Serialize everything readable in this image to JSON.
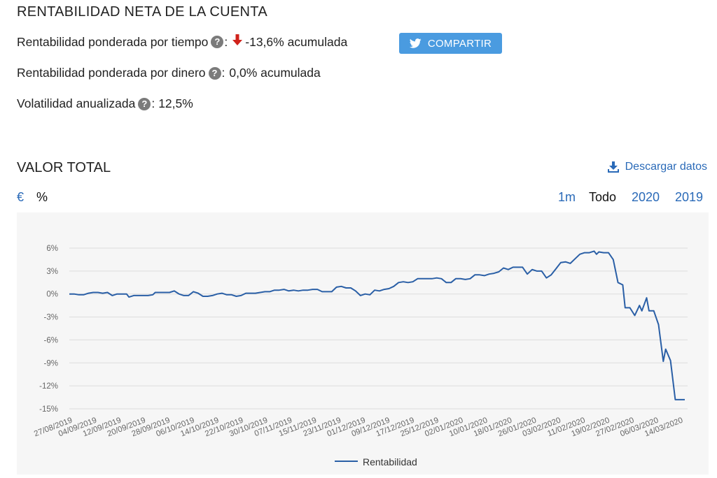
{
  "header": {
    "title": "RENTABILIDAD NETA DE LA CUENTA"
  },
  "metrics": {
    "time_weighted": {
      "label": "Rentabilidad ponderada por tiempo",
      "help": "?",
      "colon": ":",
      "arrow_icon": "arrow-down-icon",
      "value": "-13,6% acumulada"
    },
    "money_weighted": {
      "label": "Rentabilidad ponderada por dinero",
      "help": "?",
      "colon": ":",
      "value": "0,0% acumulada"
    },
    "volatility": {
      "label": "Volatilidad anualizada",
      "help": "?",
      "colon": ":",
      "value": "12,5%"
    }
  },
  "share": {
    "label": "COMPARTIR",
    "icon": "twitter-bird-icon"
  },
  "valor_total": {
    "title": "VALOR TOTAL",
    "download": {
      "label": "Descargar datos",
      "icon": "download-icon"
    },
    "units": [
      {
        "label": "€",
        "selected": false
      },
      {
        "label": "%",
        "selected": true
      }
    ],
    "ranges": [
      {
        "label": "1m",
        "selected": false
      },
      {
        "label": "Todo",
        "selected": true
      },
      {
        "label": "2020",
        "selected": false
      },
      {
        "label": "2019",
        "selected": false
      }
    ]
  },
  "colors": {
    "accent": "#2a6ab8",
    "share_button": "#4a9be0",
    "series": "#2a5fa6",
    "down_arrow": "#d0221b"
  },
  "chart_data": {
    "type": "line",
    "title": "",
    "xlabel": "",
    "ylabel": "",
    "ylim": [
      -15,
      6
    ],
    "yticks": [
      6,
      3,
      0,
      -3,
      -6,
      -9,
      -12,
      -15
    ],
    "ytick_labels": [
      "6%",
      "3%",
      "0%",
      "-3%",
      "-6%",
      "-9%",
      "-12%",
      "-15%"
    ],
    "x_tick_labels": [
      "27/08/2019",
      "04/09/2019",
      "12/09/2019",
      "20/09/2019",
      "28/09/2019",
      "06/10/2019",
      "14/10/2019",
      "22/10/2019",
      "30/10/2019",
      "07/11/2019",
      "15/11/2019",
      "23/11/2019",
      "01/12/2019",
      "09/12/2019",
      "17/12/2019",
      "25/12/2019",
      "02/01/2020",
      "10/01/2020",
      "18/01/2020",
      "26/01/2020",
      "03/02/2020",
      "11/02/2020",
      "19/02/2020",
      "27/02/2020",
      "06/03/2020",
      "14/03/2020"
    ],
    "legend": {
      "position": "bottom"
    },
    "grid": true,
    "series": [
      {
        "name": "Rentabilidad",
        "points": [
          [
            0,
            0.0
          ],
          [
            2,
            0.0
          ],
          [
            4,
            -0.1
          ],
          [
            6,
            -0.1
          ],
          [
            8,
            0.1
          ],
          [
            10,
            0.2
          ],
          [
            12,
            0.2
          ],
          [
            14,
            0.1
          ],
          [
            16,
            0.2
          ],
          [
            18,
            -0.2
          ],
          [
            20,
            0.0
          ],
          [
            22,
            0.0
          ],
          [
            24,
            0.0
          ],
          [
            25,
            -0.4
          ],
          [
            27,
            -0.2
          ],
          [
            29,
            -0.2
          ],
          [
            31,
            -0.2
          ],
          [
            33,
            -0.2
          ],
          [
            35,
            -0.1
          ],
          [
            36,
            0.2
          ],
          [
            38,
            0.2
          ],
          [
            40,
            0.2
          ],
          [
            42,
            0.2
          ],
          [
            44,
            0.4
          ],
          [
            46,
            0.0
          ],
          [
            48,
            -0.2
          ],
          [
            50,
            -0.2
          ],
          [
            52,
            0.3
          ],
          [
            54,
            0.1
          ],
          [
            56,
            -0.3
          ],
          [
            58,
            -0.3
          ],
          [
            60,
            -0.2
          ],
          [
            62,
            0.0
          ],
          [
            64,
            0.1
          ],
          [
            66,
            -0.1
          ],
          [
            68,
            -0.1
          ],
          [
            70,
            -0.3
          ],
          [
            72,
            -0.2
          ],
          [
            74,
            0.1
          ],
          [
            76,
            0.1
          ],
          [
            78,
            0.1
          ],
          [
            80,
            0.2
          ],
          [
            82,
            0.3
          ],
          [
            84,
            0.3
          ],
          [
            86,
            0.5
          ],
          [
            88,
            0.5
          ],
          [
            90,
            0.6
          ],
          [
            92,
            0.4
          ],
          [
            94,
            0.5
          ],
          [
            96,
            0.4
          ],
          [
            98,
            0.5
          ],
          [
            100,
            0.5
          ],
          [
            102,
            0.6
          ],
          [
            104,
            0.6
          ],
          [
            106,
            0.3
          ],
          [
            108,
            0.3
          ],
          [
            110,
            0.3
          ],
          [
            112,
            0.9
          ],
          [
            114,
            1.0
          ],
          [
            116,
            0.8
          ],
          [
            118,
            0.8
          ],
          [
            120,
            0.4
          ],
          [
            122,
            -0.2
          ],
          [
            124,
            0.0
          ],
          [
            126,
            -0.1
          ],
          [
            128,
            0.5
          ],
          [
            130,
            0.4
          ],
          [
            132,
            0.6
          ],
          [
            134,
            0.7
          ],
          [
            136,
            1.0
          ],
          [
            138,
            1.5
          ],
          [
            140,
            1.6
          ],
          [
            142,
            1.5
          ],
          [
            144,
            1.6
          ],
          [
            146,
            2.0
          ],
          [
            148,
            2.0
          ],
          [
            150,
            2.0
          ],
          [
            152,
            2.0
          ],
          [
            154,
            2.1
          ],
          [
            156,
            2.0
          ],
          [
            158,
            1.5
          ],
          [
            160,
            1.5
          ],
          [
            162,
            2.0
          ],
          [
            164,
            2.0
          ],
          [
            166,
            1.9
          ],
          [
            168,
            2.0
          ],
          [
            170,
            2.5
          ],
          [
            172,
            2.5
          ],
          [
            174,
            2.4
          ],
          [
            176,
            2.6
          ],
          [
            178,
            2.7
          ],
          [
            180,
            2.9
          ],
          [
            182,
            3.4
          ],
          [
            184,
            3.2
          ],
          [
            186,
            3.5
          ],
          [
            188,
            3.5
          ],
          [
            190,
            3.5
          ],
          [
            192,
            2.6
          ],
          [
            194,
            3.2
          ],
          [
            196,
            3.0
          ],
          [
            198,
            3.0
          ],
          [
            200,
            2.1
          ],
          [
            202,
            2.5
          ],
          [
            204,
            3.3
          ],
          [
            206,
            4.1
          ],
          [
            208,
            4.2
          ],
          [
            210,
            4.0
          ],
          [
            212,
            4.6
          ],
          [
            214,
            5.2
          ],
          [
            216,
            5.4
          ],
          [
            218,
            5.4
          ],
          [
            220,
            5.6
          ],
          [
            221,
            5.2
          ],
          [
            222,
            5.5
          ],
          [
            224,
            5.4
          ],
          [
            226,
            5.4
          ],
          [
            228,
            4.5
          ],
          [
            230,
            1.5
          ],
          [
            232,
            1.2
          ],
          [
            233,
            -1.8
          ],
          [
            235,
            -1.8
          ],
          [
            237,
            -2.8
          ],
          [
            239,
            -1.5
          ],
          [
            240,
            -2.2
          ],
          [
            242,
            -0.5
          ],
          [
            243,
            -2.2
          ],
          [
            245,
            -2.2
          ],
          [
            247,
            -4.0
          ],
          [
            249,
            -8.8
          ],
          [
            250,
            -7.2
          ],
          [
            252,
            -8.7
          ],
          [
            254,
            -13.8
          ],
          [
            256,
            -13.8
          ],
          [
            258,
            -13.8
          ]
        ]
      }
    ]
  }
}
